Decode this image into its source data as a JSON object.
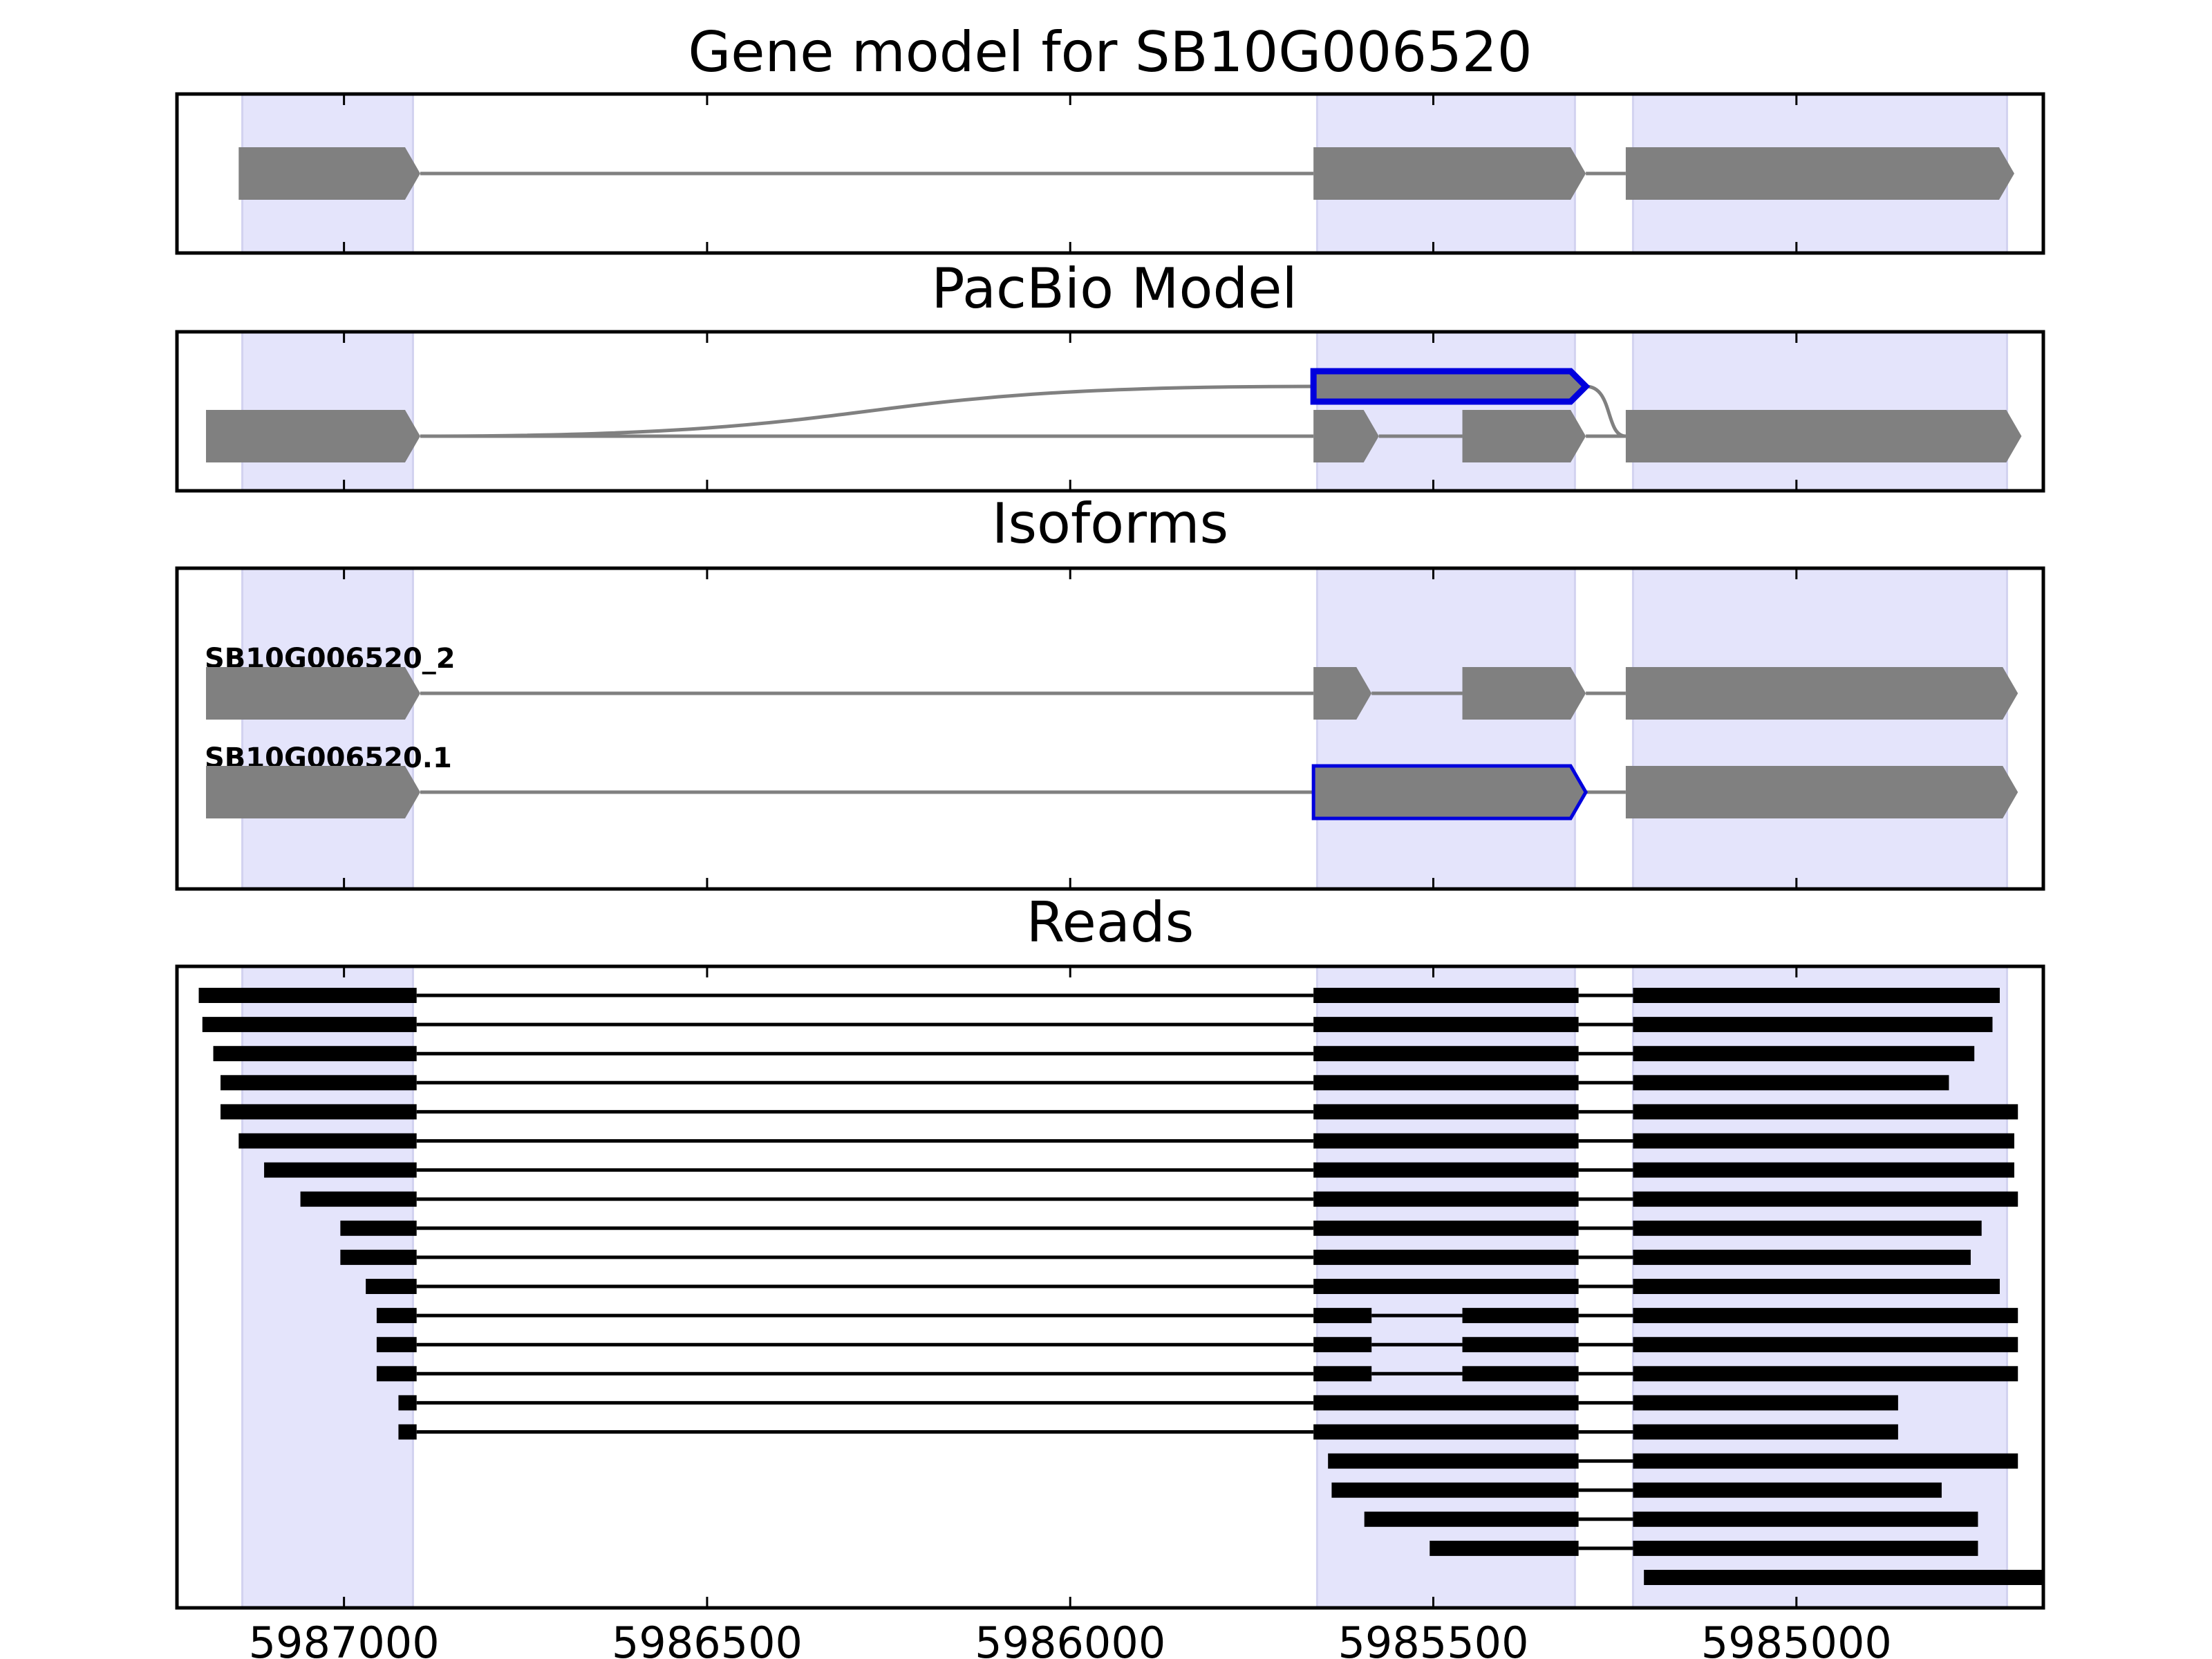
{
  "chart_data": {
    "type": "gene_model",
    "x_axis": {
      "reversed": true,
      "range": [
        5987230,
        5984660
      ],
      "ticks": [
        5987000,
        5986500,
        5986000,
        5985500,
        5985000
      ],
      "tick_labels": [
        "5987000",
        "5986500",
        "5986000",
        "5985500",
        "5985000"
      ]
    },
    "highlight_regions": [
      [
        5987140,
        5986905
      ],
      [
        5985660,
        5985305
      ],
      [
        5985225,
        5984710
      ]
    ],
    "colors": {
      "highlight": "#e4e4fb",
      "feature": "#808080",
      "intron_line": "#808080",
      "selected_outline": "#0000dd",
      "read": "#000000"
    },
    "panels": [
      {
        "id": "gene-model",
        "title": "Gene model for SB10G006520",
        "tracks": [
          {
            "exons": [
              [
                5987145,
                5986895
              ],
              [
                5985665,
                5985290
              ],
              [
                5985235,
                5984700
              ]
            ]
          }
        ]
      },
      {
        "id": "pacbio-model",
        "title": "PacBio Model",
        "tracks": [
          {
            "exons": [
              [
                5987190,
                5986895
              ],
              [
                5985665,
                5985575
              ],
              [
                5985460,
                5985290
              ],
              [
                5985235,
                5984690
              ]
            ]
          }
        ],
        "alt_exon": {
          "exon": [
            5985665,
            5985290
          ],
          "selected": true
        },
        "alt_curve": {
          "from": 5986895,
          "to": 5985235
        }
      },
      {
        "id": "isoforms",
        "title": "Isoforms",
        "tracks": [
          {
            "name": "SB10G006520_2",
            "exons": [
              [
                5987190,
                5986895
              ],
              [
                5985665,
                5985585
              ],
              [
                5985460,
                5985290
              ],
              [
                5985235,
                5984695
              ]
            ]
          },
          {
            "name": "SB10G006520.1",
            "exons": [
              [
                5987190,
                5986895
              ],
              [
                5985665,
                5985290
              ],
              [
                5985235,
                5984695
              ]
            ],
            "selected_exon": 1
          }
        ]
      },
      {
        "id": "reads",
        "title": "Reads",
        "reads": [
          [
            [
              5987200,
              5986900
            ],
            [
              5985665,
              5985300
            ],
            [
              5985225,
              5984720
            ]
          ],
          [
            [
              5987195,
              5986900
            ],
            [
              5985665,
              5985300
            ],
            [
              5985225,
              5984730
            ]
          ],
          [
            [
              5987180,
              5986900
            ],
            [
              5985665,
              5985300
            ],
            [
              5985225,
              5984755
            ]
          ],
          [
            [
              5987170,
              5986900
            ],
            [
              5985665,
              5985300
            ],
            [
              5985225,
              5984790
            ]
          ],
          [
            [
              5987170,
              5986900
            ],
            [
              5985665,
              5985300
            ],
            [
              5985225,
              5984695
            ]
          ],
          [
            [
              5987145,
              5986900
            ],
            [
              5985665,
              5985300
            ],
            [
              5985225,
              5984700
            ]
          ],
          [
            [
              5987110,
              5986900
            ],
            [
              5985665,
              5985300
            ],
            [
              5985225,
              5984700
            ]
          ],
          [
            [
              5987060,
              5986900
            ],
            [
              5985665,
              5985300
            ],
            [
              5985225,
              5984695
            ]
          ],
          [
            [
              5987005,
              5986900
            ],
            [
              5985665,
              5985300
            ],
            [
              5985225,
              5984745
            ]
          ],
          [
            [
              5987005,
              5986900
            ],
            [
              5985665,
              5985300
            ],
            [
              5985225,
              5984760
            ]
          ],
          [
            [
              5986970,
              5986900
            ],
            [
              5985665,
              5985300
            ],
            [
              5985225,
              5984720
            ]
          ],
          [
            [
              5986955,
              5986900
            ],
            [
              5985665,
              5985585
            ],
            [
              5985460,
              5985300
            ],
            [
              5985225,
              5984695
            ]
          ],
          [
            [
              5986955,
              5986900
            ],
            [
              5985665,
              5985585
            ],
            [
              5985460,
              5985300
            ],
            [
              5985225,
              5984695
            ]
          ],
          [
            [
              5986955,
              5986900
            ],
            [
              5985665,
              5985585
            ],
            [
              5985460,
              5985300
            ],
            [
              5985225,
              5984695
            ]
          ],
          [
            [
              5986925,
              5986900
            ],
            [
              5985665,
              5985300
            ],
            [
              5985225,
              5984860
            ]
          ],
          [
            [
              5986925,
              5986900
            ],
            [
              5985665,
              5985300
            ],
            [
              5985225,
              5984860
            ]
          ],
          [
            [
              5985645,
              5985300
            ],
            [
              5985225,
              5984695
            ]
          ],
          [
            [
              5985640,
              5985300
            ],
            [
              5985225,
              5984800
            ]
          ],
          [
            [
              5985595,
              5985300
            ],
            [
              5985225,
              5984750
            ]
          ],
          [
            [
              5985505,
              5985300
            ],
            [
              5985225,
              5984750
            ]
          ],
          [
            [
              5985210,
              5984660
            ]
          ]
        ]
      }
    ]
  }
}
